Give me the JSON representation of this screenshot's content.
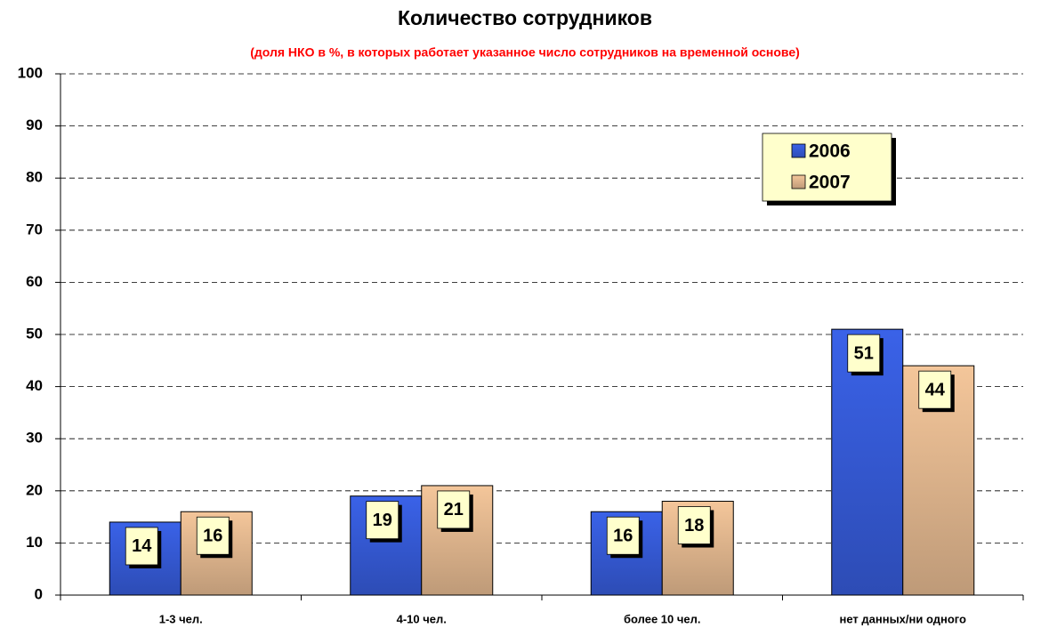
{
  "chart_data": {
    "type": "bar",
    "title": "Количество сотрудников",
    "subtitle": "(доля НКО в %, в которых работает указанное число сотрудников на временной основе)",
    "categories": [
      "1-3 чел.",
      "4-10 чел.",
      "более 10 чел.",
      "нет данных/ни одного"
    ],
    "series": [
      {
        "name": "2006",
        "color": "#3a62e8",
        "values": [
          14,
          19,
          16,
          51
        ]
      },
      {
        "name": "2007",
        "color": "#f4c69a",
        "values": [
          16,
          21,
          18,
          44
        ]
      }
    ],
    "ylim": [
      0,
      100
    ],
    "yticks": [
      0,
      10,
      20,
      30,
      40,
      50,
      60,
      70,
      80,
      90,
      100
    ],
    "grid": true,
    "legend": "upper right"
  }
}
